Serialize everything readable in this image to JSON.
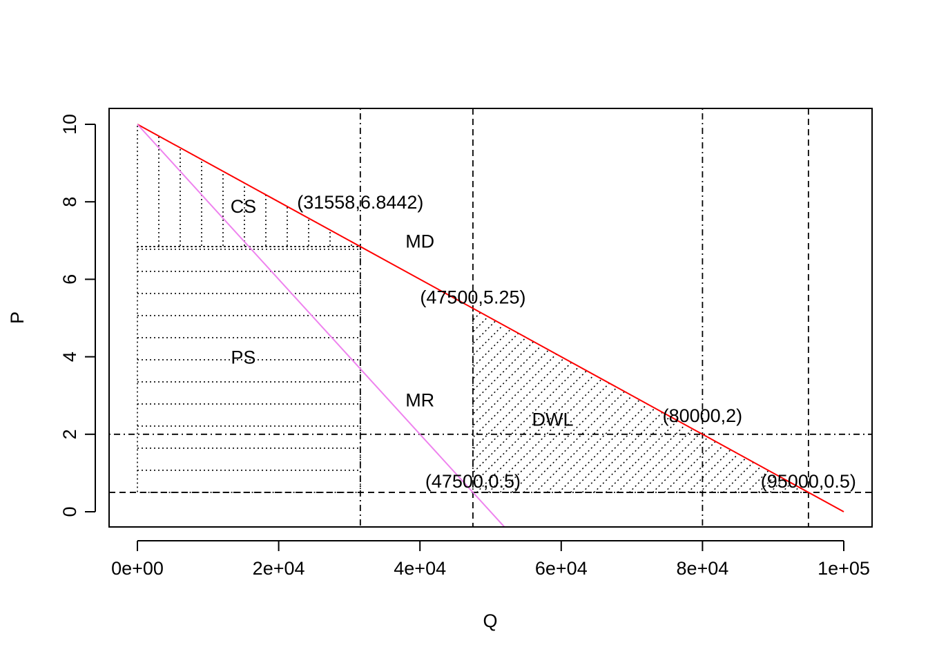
{
  "chart_data": {
    "type": "line",
    "title": "",
    "xlabel": "Q",
    "ylabel": "P",
    "xlim": [
      0,
      100000
    ],
    "ylim": [
      0,
      10
    ],
    "x_ticks": [
      0,
      20000,
      40000,
      60000,
      80000,
      100000
    ],
    "x_tick_labels": [
      "0e+00",
      "2e+04",
      "4e+04",
      "6e+04",
      "8e+04",
      "1e+05"
    ],
    "y_ticks": [
      0,
      2,
      4,
      6,
      8,
      10
    ],
    "y_tick_labels": [
      "0",
      "2",
      "4",
      "6",
      "8",
      "10"
    ],
    "grid": false,
    "series": [
      {
        "name": "MD",
        "color": "#ff0000",
        "x": [
          0,
          100000
        ],
        "y": [
          10,
          0
        ]
      },
      {
        "name": "MR",
        "color": "#ee82ee",
        "x": [
          0,
          52000
        ],
        "y": [
          10,
          -0.4
        ]
      }
    ],
    "vertical_lines": [
      {
        "x": 31558,
        "style": "dotdash"
      },
      {
        "x": 47500,
        "style": "dashed"
      },
      {
        "x": 80000,
        "style": "dotdash"
      },
      {
        "x": 95000,
        "style": "dashed"
      }
    ],
    "horizontal_lines": [
      {
        "y": 2,
        "style": "dotdash"
      },
      {
        "y": 0.5,
        "style": "dashed"
      }
    ],
    "regions": [
      {
        "label": "CS",
        "hatch": "vertical",
        "polygon": [
          [
            0,
            10
          ],
          [
            31558,
            6.8442
          ],
          [
            0,
            6.8442
          ]
        ]
      },
      {
        "label": "PS",
        "hatch": "horizontal",
        "polygon": [
          [
            0,
            6.8442
          ],
          [
            31558,
            6.8442
          ],
          [
            31558,
            0.5
          ],
          [
            0,
            0.5
          ]
        ]
      },
      {
        "label": "DWL",
        "hatch": "diagonal",
        "polygon": [
          [
            47500,
            5.25
          ],
          [
            95000,
            0.5
          ],
          [
            47500,
            0.5
          ]
        ]
      }
    ],
    "annotations": [
      {
        "text": "(31558,6.8442)",
        "x": 31558,
        "y": 8.0
      },
      {
        "text": "MD",
        "x": 40000,
        "y": 7.0
      },
      {
        "text": "(47500,5.25)",
        "x": 47500,
        "y": 5.55
      },
      {
        "text": "CS",
        "x": 15000,
        "y": 7.9
      },
      {
        "text": "PS",
        "x": 15000,
        "y": 4.0
      },
      {
        "text": "MR",
        "x": 40000,
        "y": 2.9
      },
      {
        "text": "DWL",
        "x": 58800,
        "y": 2.4
      },
      {
        "text": "(80000,2)",
        "x": 80000,
        "y": 2.5
      },
      {
        "text": "(47500,0.5)",
        "x": 47500,
        "y": 0.8
      },
      {
        "text": "(95000,0.5)",
        "x": 95000,
        "y": 0.8
      }
    ]
  }
}
